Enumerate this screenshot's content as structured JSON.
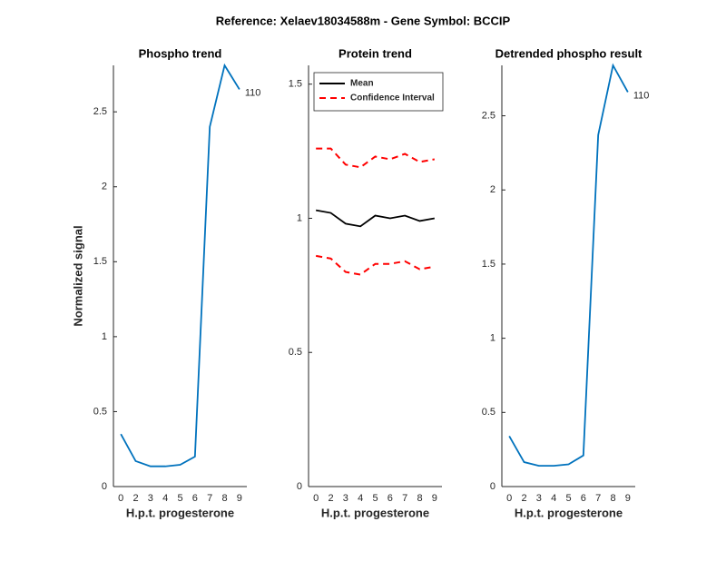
{
  "title": "Reference:  Xelaev18034588m - Gene Symbol:  BCCIP",
  "chart_data": [
    {
      "type": "line",
      "title": "Phospho trend",
      "x_label": "H.p.t. progesterone",
      "y_label": "Normalized signal",
      "categories": [
        "0",
        "2",
        "3",
        "4",
        "5",
        "6",
        "7",
        "8",
        "9"
      ],
      "series": [
        {
          "color": "#0072bd",
          "values": [
            0.35,
            0.17,
            0.135,
            0.135,
            0.145,
            0.2,
            2.4,
            2.81,
            2.65
          ]
        }
      ],
      "annotations": [
        {
          "text": "110"
        }
      ],
      "ylim": [
        0,
        2.81
      ],
      "yticks": [
        0,
        0.5,
        1,
        1.5,
        2,
        2.5
      ]
    },
    {
      "type": "line",
      "title": "Protein trend",
      "x_label": "H.p.t. progesterone",
      "categories": [
        "0",
        "2",
        "3",
        "4",
        "5",
        "6",
        "7",
        "8",
        "9"
      ],
      "series": [
        {
          "name": "Mean",
          "color": "#000000",
          "values": [
            1.03,
            1.02,
            0.98,
            0.97,
            1.01,
            1.0,
            1.01,
            0.99,
            1.0
          ]
        },
        {
          "name": "Confidence Interval",
          "color": "#ff0000",
          "dashed": true,
          "upper": [
            1.26,
            1.26,
            1.2,
            1.19,
            1.23,
            1.22,
            1.24,
            1.21,
            1.22
          ],
          "lower": [
            0.86,
            0.85,
            0.8,
            0.79,
            0.83,
            0.83,
            0.84,
            0.81,
            0.82
          ]
        }
      ],
      "legend": "upper left",
      "ylim": [
        0,
        1.57
      ],
      "yticks": [
        0,
        0.5,
        1,
        1.5
      ]
    },
    {
      "type": "line",
      "title": "Detrended phospho result",
      "x_label": "H.p.t. progesterone",
      "categories": [
        "0",
        "2",
        "3",
        "4",
        "5",
        "6",
        "7",
        "8",
        "9"
      ],
      "series": [
        {
          "color": "#0072bd",
          "values": [
            0.34,
            0.165,
            0.14,
            0.14,
            0.15,
            0.21,
            2.37,
            2.84,
            2.66
          ]
        }
      ],
      "annotations": [
        {
          "text": "110"
        }
      ],
      "ylim": [
        0,
        2.84
      ],
      "yticks": [
        0,
        0.5,
        1,
        1.5,
        2,
        2.5
      ]
    }
  ]
}
